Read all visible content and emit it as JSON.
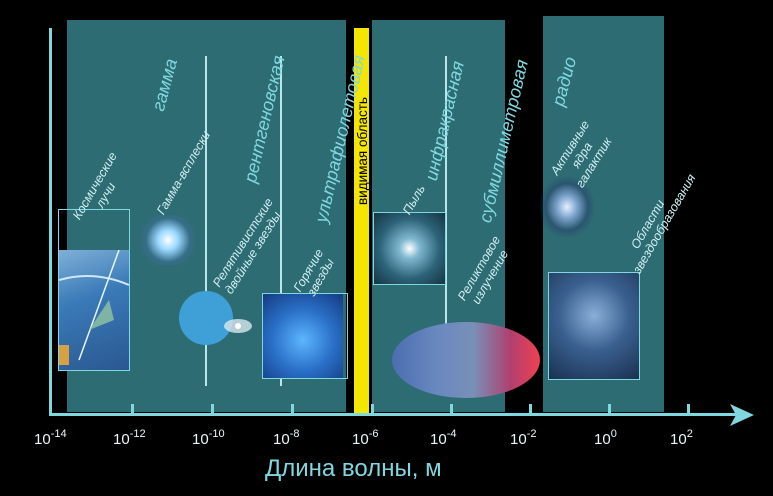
{
  "visible_label": "видимая область",
  "axis_label": "Длина волны, м",
  "bands": {
    "gamma": "гамма",
    "xray": "рентгеновская",
    "uv": "ультрафиолетовая",
    "ir": "инфракрасная",
    "submm": "субмиллиметровая",
    "radio": "радио"
  },
  "objects": {
    "cosmic_rays": "Космические лучи",
    "gamma_bursts": "Гамма-всплески",
    "relativistic_binaries": "Релятивистские двойные звезды",
    "hot_stars": "Горячие звезды",
    "dust": "Пыль",
    "relic_radiation": "Реликтовое излучение",
    "agn": "Активные ядра галактик",
    "star_forming_regions": "Области звездообразования"
  },
  "ticks": [
    {
      "base": "10",
      "exp": "-14"
    },
    {
      "base": "10",
      "exp": "-12"
    },
    {
      "base": "10",
      "exp": "-10"
    },
    {
      "base": "10",
      "exp": "-8"
    },
    {
      "base": "10",
      "exp": "-6"
    },
    {
      "base": "10",
      "exp": "-4"
    },
    {
      "base": "10",
      "exp": "-2"
    },
    {
      "base": "10",
      "exp": "0"
    },
    {
      "base": "10",
      "exp": "2"
    }
  ],
  "colors": {
    "panel": "#4096a0",
    "axis": "#7fd8e0",
    "visible_band": "#f5e600"
  }
}
